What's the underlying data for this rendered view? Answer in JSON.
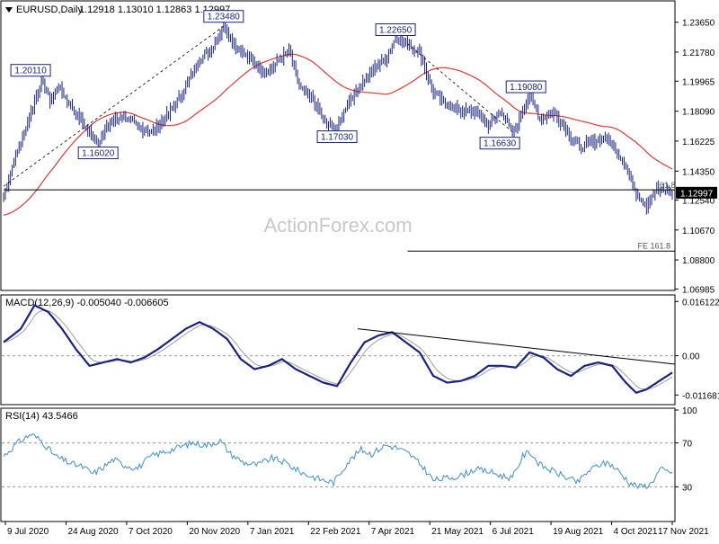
{
  "header": {
    "symbol": "EURUSD,Daily",
    "ohlc": "1.12918 1.13010 1.12863 1.12997"
  },
  "watermark": "ActionForex.com",
  "colors": {
    "bars": "#1a237e",
    "ma": "#e53935",
    "macd": "#1a237e",
    "signal": "#9e9e9e",
    "rsi": "#3f8fd2",
    "trend": "#000000"
  },
  "chart_data": [
    {
      "type": "bar",
      "panel": "price",
      "title": "EURUSD,Daily",
      "ylim": [
        1.0695,
        1.247
      ],
      "y_ticks": [
        "1.23650",
        "1.21780",
        "1.19965",
        "1.18090",
        "1.16225",
        "1.14350",
        "1.12540",
        "1.10670",
        "1.08800",
        "1.06985"
      ],
      "x_ticks": [
        "9 Jul 2020",
        "24 Aug 2020",
        "7 Oct 2020",
        "20 Nov 2020",
        "7 Jan 2021",
        "22 Feb 2021",
        "7 Apr 2021",
        "21 May 2021",
        "6 Jul 2021",
        "19 Aug 2021",
        "4 Oct 2021",
        "17 Nov 2021"
      ],
      "current_price": "1.12997",
      "price_keypoints": [
        [
          0,
          1.128
        ],
        [
          6,
          1.15
        ],
        [
          16,
          1.18
        ],
        [
          22,
          1.201
        ],
        [
          27,
          1.188
        ],
        [
          32,
          1.196
        ],
        [
          40,
          1.183
        ],
        [
          48,
          1.17
        ],
        [
          55,
          1.161
        ],
        [
          62,
          1.174
        ],
        [
          70,
          1.178
        ],
        [
          78,
          1.171
        ],
        [
          86,
          1.168
        ],
        [
          96,
          1.179
        ],
        [
          105,
          1.194
        ],
        [
          113,
          1.212
        ],
        [
          122,
          1.221
        ],
        [
          128,
          1.2348
        ],
        [
          135,
          1.222
        ],
        [
          144,
          1.212
        ],
        [
          152,
          1.205
        ],
        [
          160,
          1.212
        ],
        [
          166,
          1.219
        ],
        [
          172,
          1.196
        ],
        [
          180,
          1.188
        ],
        [
          188,
          1.172
        ],
        [
          194,
          1.1703
        ],
        [
          200,
          1.186
        ],
        [
          208,
          1.198
        ],
        [
          215,
          1.207
        ],
        [
          222,
          1.214
        ],
        [
          228,
          1.2265
        ],
        [
          235,
          1.223
        ],
        [
          242,
          1.218
        ],
        [
          250,
          1.192
        ],
        [
          258,
          1.185
        ],
        [
          266,
          1.181
        ],
        [
          275,
          1.18
        ],
        [
          282,
          1.172
        ],
        [
          290,
          1.181
        ],
        [
          296,
          1.1663
        ],
        [
          302,
          1.181
        ],
        [
          306,
          1.1908
        ],
        [
          312,
          1.176
        ],
        [
          320,
          1.18
        ],
        [
          328,
          1.168
        ],
        [
          335,
          1.158
        ],
        [
          343,
          1.162
        ],
        [
          350,
          1.165
        ],
        [
          356,
          1.158
        ],
        [
          362,
          1.146
        ],
        [
          368,
          1.13
        ],
        [
          374,
          1.122
        ],
        [
          380,
          1.132
        ],
        [
          385,
          1.131
        ],
        [
          389,
          1.12997
        ]
      ],
      "annotations": [
        {
          "label": "1.20110",
          "bar": 22,
          "value": 1.2011,
          "placement": "above"
        },
        {
          "label": "1.16020",
          "bar": 55,
          "value": 1.1602,
          "placement": "below"
        },
        {
          "label": "1.23480",
          "bar": 128,
          "value": 1.2348,
          "placement": "above"
        },
        {
          "label": "1.17030",
          "bar": 194,
          "value": 1.1703,
          "placement": "below"
        },
        {
          "label": "1.22650",
          "bar": 228,
          "value": 1.2265,
          "placement": "above"
        },
        {
          "label": "1.16630",
          "bar": 296,
          "value": 1.1663,
          "placement": "below"
        },
        {
          "label": "1.19080",
          "bar": 306,
          "value": 1.1908,
          "placement": "above"
        }
      ],
      "level_lines": [
        {
          "label": "61.8",
          "value": 1.1318,
          "from_bar": 0,
          "to_bar": 389
        },
        {
          "label": "FE 161.8",
          "value": 1.0935,
          "from_bar": 235,
          "to_bar": 389
        }
      ],
      "trend_lines": [
        {
          "from": [
            0,
            1.134
          ],
          "to": [
            128,
            1.234
          ]
        },
        {
          "from": [
            235,
            1.223
          ],
          "to": [
            296,
            1.168
          ]
        }
      ]
    },
    {
      "type": "line",
      "panel": "macd",
      "title": "MACD(12,26,9) -0.005040 -0.006605",
      "ylim": [
        -0.014,
        0.017
      ],
      "y_ticks": [
        "0.016122",
        "0.00",
        "-0.011681"
      ],
      "macd_keypoints": [
        [
          0,
          0.004
        ],
        [
          10,
          0.008
        ],
        [
          18,
          0.015
        ],
        [
          26,
          0.013
        ],
        [
          34,
          0.008
        ],
        [
          42,
          0.002
        ],
        [
          50,
          -0.003
        ],
        [
          58,
          -0.002
        ],
        [
          66,
          -0.001
        ],
        [
          74,
          -0.002
        ],
        [
          82,
          -0.0005
        ],
        [
          90,
          0.002
        ],
        [
          98,
          0.005
        ],
        [
          106,
          0.008
        ],
        [
          114,
          0.01
        ],
        [
          122,
          0.008
        ],
        [
          130,
          0.005
        ],
        [
          138,
          -0.001
        ],
        [
          146,
          -0.004
        ],
        [
          154,
          -0.003
        ],
        [
          162,
          -0.001
        ],
        [
          170,
          -0.004
        ],
        [
          178,
          -0.006
        ],
        [
          186,
          -0.008
        ],
        [
          194,
          -0.009
        ],
        [
          202,
          -0.002
        ],
        [
          210,
          0.004
        ],
        [
          218,
          0.006
        ],
        [
          226,
          0.007
        ],
        [
          234,
          0.004
        ],
        [
          242,
          0.001
        ],
        [
          250,
          -0.006
        ],
        [
          258,
          -0.008
        ],
        [
          266,
          -0.0075
        ],
        [
          274,
          -0.006
        ],
        [
          282,
          -0.003
        ],
        [
          290,
          -0.003
        ],
        [
          298,
          -0.0035
        ],
        [
          306,
          0.001
        ],
        [
          314,
          -0.0005
        ],
        [
          322,
          -0.004
        ],
        [
          330,
          -0.006
        ],
        [
          338,
          -0.003
        ],
        [
          346,
          -0.002
        ],
        [
          354,
          -0.003
        ],
        [
          362,
          -0.008
        ],
        [
          368,
          -0.011
        ],
        [
          374,
          -0.01
        ],
        [
          380,
          -0.008
        ],
        [
          386,
          -0.006
        ],
        [
          389,
          -0.005
        ]
      ],
      "trend_line": {
        "from": [
          206,
          0.008
        ],
        "to": [
          389,
          -0.0025
        ]
      }
    },
    {
      "type": "line",
      "panel": "rsi",
      "title": "RSI(14) 43.5466",
      "ylim": [
        0,
        100
      ],
      "y_ticks": [
        "100",
        "70",
        "30"
      ],
      "levels": [
        70,
        30
      ],
      "rsi_keypoints": [
        [
          0,
          58
        ],
        [
          8,
          70
        ],
        [
          16,
          78
        ],
        [
          22,
          72
        ],
        [
          30,
          58
        ],
        [
          38,
          52
        ],
        [
          46,
          48
        ],
        [
          52,
          42
        ],
        [
          58,
          48
        ],
        [
          64,
          55
        ],
        [
          70,
          50
        ],
        [
          78,
          47
        ],
        [
          86,
          58
        ],
        [
          94,
          62
        ],
        [
          102,
          66
        ],
        [
          110,
          70
        ],
        [
          118,
          68
        ],
        [
          126,
          72
        ],
        [
          132,
          60
        ],
        [
          140,
          52
        ],
        [
          148,
          50
        ],
        [
          156,
          56
        ],
        [
          164,
          52
        ],
        [
          172,
          44
        ],
        [
          178,
          40
        ],
        [
          186,
          36
        ],
        [
          192,
          34
        ],
        [
          200,
          52
        ],
        [
          208,
          64
        ],
        [
          214,
          60
        ],
        [
          222,
          68
        ],
        [
          228,
          66
        ],
        [
          236,
          60
        ],
        [
          244,
          48
        ],
        [
          250,
          36
        ],
        [
          258,
          38
        ],
        [
          266,
          40
        ],
        [
          274,
          46
        ],
        [
          282,
          44
        ],
        [
          290,
          40
        ],
        [
          296,
          38
        ],
        [
          302,
          58
        ],
        [
          306,
          62
        ],
        [
          312,
          50
        ],
        [
          320,
          44
        ],
        [
          328,
          38
        ],
        [
          334,
          34
        ],
        [
          340,
          44
        ],
        [
          346,
          50
        ],
        [
          352,
          52
        ],
        [
          358,
          44
        ],
        [
          364,
          34
        ],
        [
          370,
          30
        ],
        [
          376,
          32
        ],
        [
          382,
          46
        ],
        [
          386,
          44
        ],
        [
          389,
          43.5
        ]
      ]
    }
  ]
}
